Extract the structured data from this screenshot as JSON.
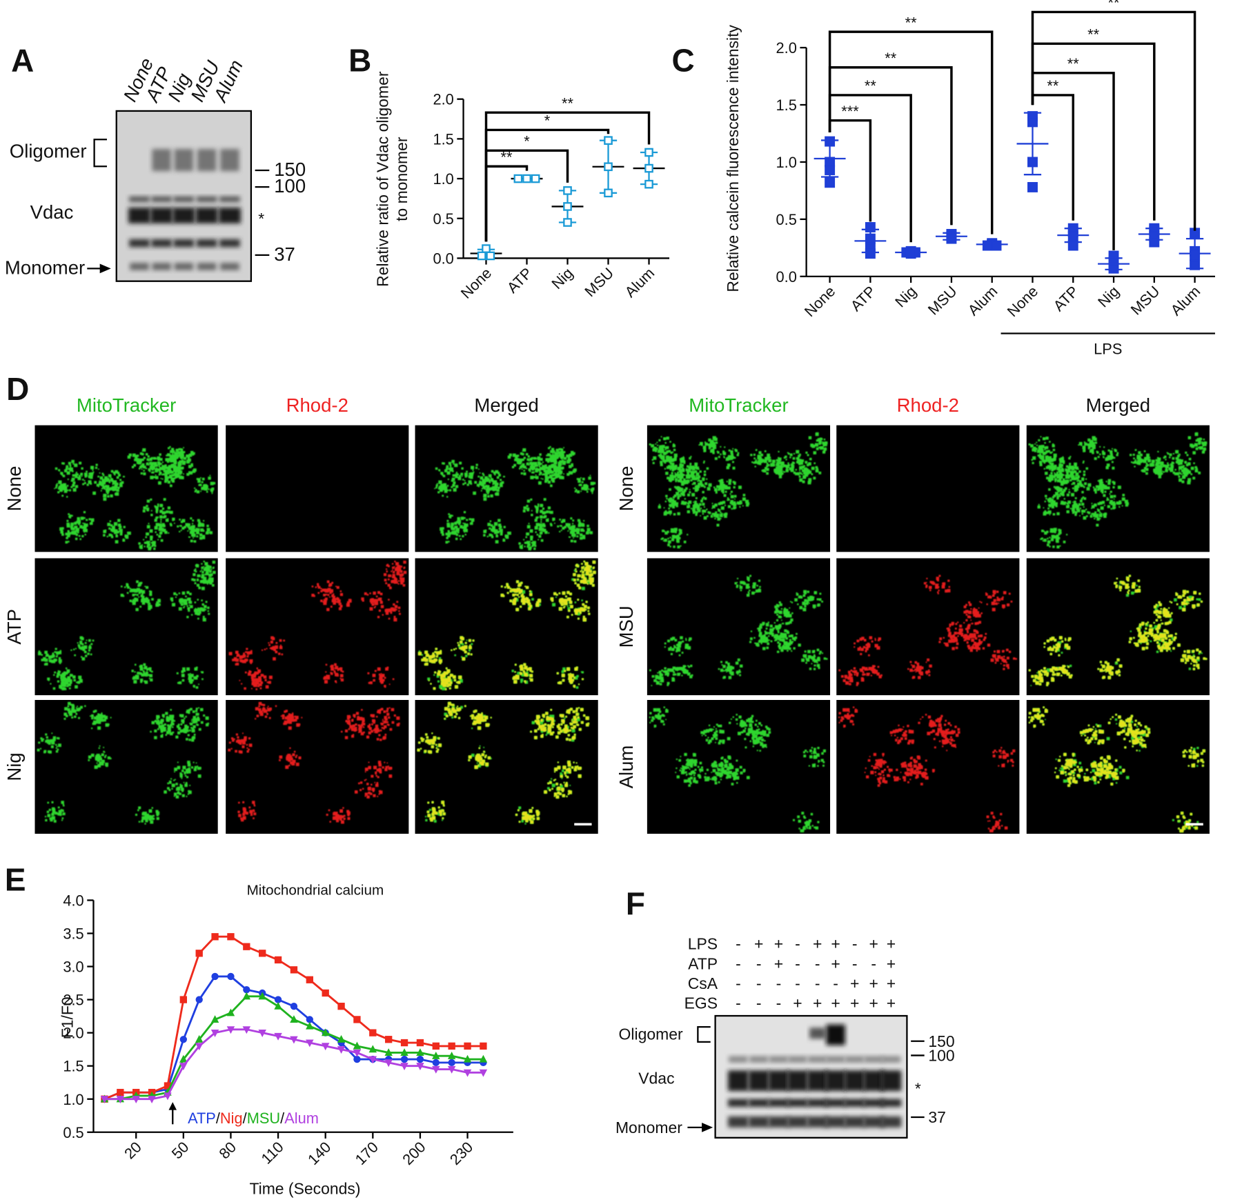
{
  "panel_labels": [
    "A",
    "B",
    "C",
    "D",
    "E",
    "F"
  ],
  "blot_a": {
    "lanes": [
      "None",
      "ATP",
      "Nig",
      "MSU",
      "Alum"
    ],
    "oligomer": "Oligomer",
    "vdac": "Vdac",
    "monomer": "Monomer",
    "markers": [
      150,
      100,
      37
    ],
    "star": "*"
  },
  "chart_data": [
    {
      "type": "dot",
      "ylabel_lines": [
        "Relative ratio of Vdac oligomer",
        "to monomer"
      ],
      "categories": [
        "None",
        "ATP",
        "Nig",
        "MSU",
        "Alum"
      ],
      "color": "#1a9ad6",
      "mean_color": "#000000",
      "marker": "open-square",
      "groups": [
        {
          "points": [
            0.12,
            0.03,
            0.03
          ],
          "mean": 0.06,
          "sd": 0.05
        },
        {
          "points": [
            1.0,
            1.0,
            1.0
          ],
          "mean": 1.0,
          "sd": 0
        },
        {
          "points": [
            0.85,
            0.65,
            0.45
          ],
          "mean": 0.65,
          "sd": 0.2
        },
        {
          "points": [
            1.48,
            1.15,
            0.82
          ],
          "mean": 1.15,
          "sd": 0.33
        },
        {
          "points": [
            1.33,
            1.13,
            0.93
          ],
          "mean": 1.13,
          "sd": 0.2
        }
      ],
      "ylim": [
        0,
        2
      ],
      "yticks": [
        {
          "value": 0,
          "label": "0.0"
        },
        {
          "value": 0.5,
          "label": "0.5"
        },
        {
          "value": 1,
          "label": "1.0"
        },
        {
          "value": 1.5,
          "label": "1.5"
        },
        {
          "value": 2,
          "label": "2.0"
        }
      ],
      "comparisons": [
        {
          "pair": [
            0,
            1
          ],
          "label": "**"
        },
        {
          "pair": [
            0,
            2
          ],
          "label": "*"
        },
        {
          "pair": [
            0,
            3
          ],
          "label": "*"
        },
        {
          "pair": [
            0,
            4
          ],
          "label": "**"
        }
      ]
    },
    {
      "type": "dot",
      "ylabel_lines": [
        "Relative calcein fluorescence intensity"
      ],
      "categories": [
        "None",
        "ATP",
        "Nig",
        "MSU",
        "Alum",
        "None",
        "ATP",
        "Nig",
        "MSU",
        "Alum"
      ],
      "group_label": "LPS",
      "color": "#1f3fd6",
      "mean_color": "#1f3fd6",
      "marker": "filled-square",
      "groups": [
        {
          "points": [
            1.18,
            1.0,
            0.93,
            0.82
          ],
          "mean": 1.03,
          "sd": 0.16
        },
        {
          "points": [
            0.43,
            0.33,
            0.25,
            0.2
          ],
          "mean": 0.31,
          "sd": 0.1
        },
        {
          "points": [
            0.22,
            0.21,
            0.21,
            0.2
          ],
          "mean": 0.21,
          "sd": 0.02
        },
        {
          "points": [
            0.37,
            0.36,
            0.35,
            0.33
          ],
          "mean": 0.35,
          "sd": 0.03
        },
        {
          "points": [
            0.29,
            0.28,
            0.27,
            0.27
          ],
          "mean": 0.28,
          "sd": 0.02
        },
        {
          "points": [
            1.4,
            1.35,
            1.0,
            0.78
          ],
          "mean": 1.16,
          "sd": 0.27
        },
        {
          "points": [
            0.42,
            0.39,
            0.35,
            0.27
          ],
          "mean": 0.36,
          "sd": 0.06
        },
        {
          "points": [
            0.18,
            0.13,
            0.09,
            0.07
          ],
          "mean": 0.11,
          "sd": 0.05
        },
        {
          "points": [
            0.42,
            0.4,
            0.35,
            0.3
          ],
          "mean": 0.37,
          "sd": 0.05
        },
        {
          "points": [
            0.38,
            0.22,
            0.18,
            0.1
          ],
          "mean": 0.2,
          "sd": 0.13
        }
      ],
      "ylim": [
        0,
        2
      ],
      "yticks": [
        {
          "value": 0,
          "label": "0.0"
        },
        {
          "value": 0.5,
          "label": "0.5"
        },
        {
          "value": 1,
          "label": "1.0"
        },
        {
          "value": 1.5,
          "label": "1.5"
        },
        {
          "value": 2,
          "label": "2.0"
        }
      ],
      "comparisons": [
        {
          "pair": [
            0,
            1
          ],
          "label": "***"
        },
        {
          "pair": [
            0,
            2
          ],
          "label": "**"
        },
        {
          "pair": [
            0,
            3
          ],
          "label": "**"
        },
        {
          "pair": [
            0,
            4
          ],
          "label": "**"
        },
        {
          "pair": [
            5,
            6
          ],
          "label": "**"
        },
        {
          "pair": [
            5,
            7
          ],
          "label": "**"
        },
        {
          "pair": [
            5,
            8
          ],
          "label": "**"
        },
        {
          "pair": [
            5,
            9
          ],
          "label": "**"
        }
      ]
    },
    {
      "type": "line",
      "title": "Mitochondrial calcium",
      "xlabel": "Time (Seconds)",
      "ylabel": "F1/F0",
      "x": [
        0,
        10,
        20,
        30,
        40,
        50,
        60,
        70,
        80,
        90,
        100,
        110,
        120,
        130,
        140,
        150,
        160,
        170,
        180,
        190,
        200,
        210,
        220,
        230,
        240
      ],
      "series": [
        {
          "name": "ATP",
          "color": "#1f3fe0",
          "marker": "circle",
          "values": [
            1.0,
            1.1,
            1.1,
            1.1,
            1.15,
            1.9,
            2.5,
            2.85,
            2.85,
            2.65,
            2.6,
            2.5,
            2.4,
            2.2,
            2.0,
            1.85,
            1.6,
            1.6,
            1.6,
            1.6,
            1.6,
            1.55,
            1.55,
            1.55,
            1.55
          ]
        },
        {
          "name": "Nig",
          "color": "#ee2a1c",
          "marker": "square",
          "values": [
            1.0,
            1.1,
            1.1,
            1.1,
            1.2,
            2.5,
            3.2,
            3.45,
            3.45,
            3.3,
            3.2,
            3.1,
            2.95,
            2.8,
            2.6,
            2.4,
            2.2,
            2.0,
            1.9,
            1.85,
            1.85,
            1.8,
            1.8,
            1.8,
            1.8
          ]
        },
        {
          "name": "MSU",
          "color": "#1fb21f",
          "marker": "triangle-up",
          "values": [
            1.0,
            1.0,
            1.05,
            1.05,
            1.1,
            1.6,
            1.9,
            2.2,
            2.3,
            2.55,
            2.55,
            2.4,
            2.2,
            2.1,
            2.0,
            1.9,
            1.8,
            1.75,
            1.7,
            1.7,
            1.7,
            1.65,
            1.65,
            1.6,
            1.6
          ]
        },
        {
          "name": "Alum",
          "color": "#b040e0",
          "marker": "triangle-down",
          "values": [
            1.0,
            1.0,
            1.0,
            1.0,
            1.05,
            1.5,
            1.8,
            2.0,
            2.05,
            2.05,
            2.0,
            1.95,
            1.9,
            1.85,
            1.8,
            1.75,
            1.7,
            1.6,
            1.55,
            1.5,
            1.5,
            1.45,
            1.45,
            1.4,
            1.4
          ]
        }
      ],
      "legend_separator": "/",
      "xlim": [
        -7,
        259
      ],
      "xticks": [
        20,
        50,
        80,
        110,
        140,
        170,
        200,
        230
      ],
      "ylim": [
        0.5,
        4
      ],
      "yticks": [
        0.5,
        {
          "value": 1,
          "label": "1.0"
        },
        1.5,
        {
          "value": 2,
          "label": "2.0"
        },
        2.5,
        {
          "value": 3,
          "label": "3.0"
        },
        3.5,
        {
          "value": 4,
          "label": "4.0"
        }
      ]
    }
  ],
  "micrographs": {
    "columns": [
      "MitoTracker",
      "Rhod-2",
      "Merged"
    ],
    "left_rows": [
      "None",
      "ATP",
      "Nig"
    ],
    "right_rows": [
      "None",
      "MSU",
      "Alum"
    ]
  },
  "blot_f": {
    "rows": [
      {
        "label": "LPS",
        "signs": [
          "-",
          "+",
          "+",
          "-",
          "+",
          "+",
          "-",
          "+",
          "+"
        ]
      },
      {
        "label": "ATP",
        "signs": [
          "-",
          "-",
          "+",
          "-",
          "-",
          "+",
          "-",
          "-",
          "+"
        ]
      },
      {
        "label": "CsA",
        "signs": [
          "-",
          "-",
          "-",
          "-",
          "-",
          "-",
          "+",
          "+",
          "+"
        ]
      },
      {
        "label": "EGS",
        "signs": [
          "-",
          "-",
          "-",
          "+",
          "+",
          "+",
          "+",
          "+",
          "+"
        ]
      }
    ],
    "oligomer": "Oligomer",
    "vdac": "Vdac",
    "monomer": "Monomer",
    "markers": [
      150,
      100,
      37
    ],
    "star": "*"
  }
}
